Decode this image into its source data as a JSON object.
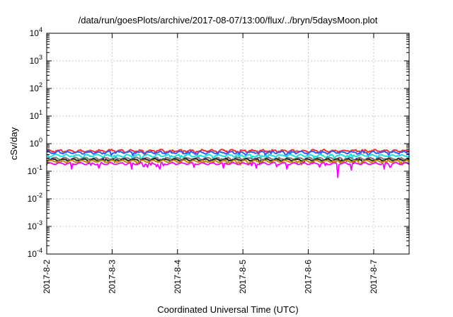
{
  "chart_data": {
    "type": "line",
    "title": "/data/run/goesPlots/archive/2017-08-07/13:00/flux/../bryn/5daysMoon.plot",
    "xlabel": "Coordinated Universal Time (UTC)",
    "ylabel": "cSv/day",
    "yscale": "log",
    "ylim": [
      0.0001,
      10000
    ],
    "y_ticks": [
      {
        "value": 0.0001,
        "base": "10",
        "exp": "-4"
      },
      {
        "value": 0.001,
        "base": "10",
        "exp": "-3"
      },
      {
        "value": 0.01,
        "base": "10",
        "exp": "-2"
      },
      {
        "value": 0.1,
        "base": "10",
        "exp": "-1"
      },
      {
        "value": 1,
        "base": "10",
        "exp": "0"
      },
      {
        "value": 10,
        "base": "10",
        "exp": "1"
      },
      {
        "value": 100,
        "base": "10",
        "exp": "2"
      },
      {
        "value": 1000,
        "base": "10",
        "exp": "3"
      },
      {
        "value": 10000,
        "base": "10",
        "exp": "4"
      }
    ],
    "xlim": [
      "2017-08-02 00:00",
      "2017-08-07 13:00"
    ],
    "x_ticks": [
      {
        "value": "2017-08-02 00:00",
        "label": "2017-8-2"
      },
      {
        "value": "2017-08-03 00:00",
        "label": "2017-8-3"
      },
      {
        "value": "2017-08-04 00:00",
        "label": "2017-8-4"
      },
      {
        "value": "2017-08-05 00:00",
        "label": "2017-8-5"
      },
      {
        "value": "2017-08-06 00:00",
        "label": "2017-8-6"
      },
      {
        "value": "2017-08-07 00:00",
        "label": "2017-8-7"
      }
    ],
    "grid": true,
    "legend": "none",
    "series": [
      {
        "color": "#ff2a2a",
        "base": 0.55,
        "jitter": 0.06,
        "dips": []
      },
      {
        "color": "#2f5cff",
        "base": 0.48,
        "jitter": 0.06,
        "dips": []
      },
      {
        "color": "#19e0e0",
        "base": 0.37,
        "jitter": 0.05,
        "dips": []
      },
      {
        "color": "#7a7a7a",
        "base": 0.29,
        "jitter": 0.04,
        "dips": []
      },
      {
        "color": "#222222",
        "base": 0.26,
        "jitter": 0.03,
        "dips": []
      },
      {
        "color": "#c08a00",
        "base": 0.23,
        "jitter": 0.03,
        "dips": []
      },
      {
        "color": "#ff00ff",
        "base": 0.19,
        "jitter": 0.03,
        "dips": [
          {
            "t": "2017-08-02 09:00",
            "v": 0.12
          },
          {
            "t": "2017-08-02 19:00",
            "v": 0.13
          },
          {
            "t": "2017-08-03 07:00",
            "v": 0.12
          },
          {
            "t": "2017-08-03 17:00",
            "v": 0.14
          },
          {
            "t": "2017-08-03 17:40",
            "v": 0.12
          },
          {
            "t": "2017-08-04 06:00",
            "v": 0.14
          },
          {
            "t": "2017-08-04 17:00",
            "v": 0.13
          },
          {
            "t": "2017-08-05 05:00",
            "v": 0.13
          },
          {
            "t": "2017-08-05 16:00",
            "v": 0.12
          },
          {
            "t": "2017-08-06 04:00",
            "v": 0.14
          },
          {
            "t": "2017-08-06 11:00",
            "v": 0.06
          },
          {
            "t": "2017-08-06 16:00",
            "v": 0.11
          },
          {
            "t": "2017-08-07 04:00",
            "v": 0.12
          }
        ]
      }
    ]
  }
}
